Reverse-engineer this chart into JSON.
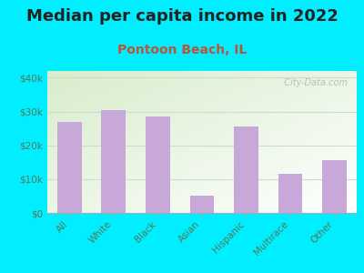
{
  "title": "Median per capita income in 2022",
  "subtitle": "Pontoon Beach, IL",
  "categories": [
    "All",
    "White",
    "Black",
    "Asian",
    "Hispanic",
    "Multirace",
    "Other"
  ],
  "values": [
    27000,
    30500,
    28500,
    5000,
    25500,
    11500,
    15500
  ],
  "bar_color": "#c8a8d8",
  "title_fontsize": 13,
  "subtitle_fontsize": 10,
  "subtitle_color": "#bb5533",
  "title_color": "#222222",
  "background_outer": "#00eeff",
  "background_inner_top_left": "#d8edcc",
  "background_inner_bottom": "#ffffff",
  "ylim": [
    0,
    42000
  ],
  "yticks": [
    0,
    10000,
    20000,
    30000,
    40000
  ],
  "ytick_labels": [
    "$0",
    "$10k",
    "$20k",
    "$30k",
    "$40k"
  ],
  "tick_color": "#557755",
  "watermark": "  City-Data.com",
  "watermark_color": "#aabbaa",
  "grid_color": "#ccddcc",
  "bar_width": 0.55
}
